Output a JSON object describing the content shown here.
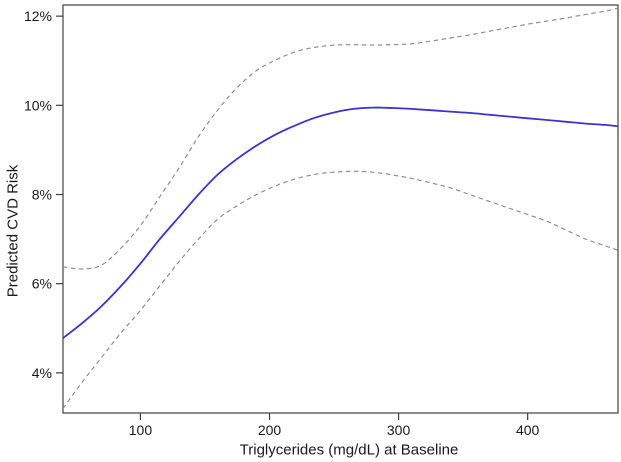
{
  "figure": {
    "background": "#ffffff",
    "frame_color": "#3f3f3f",
    "tick_color": "#3f3f3f",
    "text_color": "#1a1a1a",
    "tick_font_size": 14
  },
  "chart_data": {
    "type": "line",
    "title": "",
    "xlabel": "Triglycerides (mg/dL) at Baseline",
    "ylabel": "Predicted CVD Risk",
    "xlim": [
      40,
      470
    ],
    "ylim": [
      3.1,
      12.25
    ],
    "grid": false,
    "legend": "none",
    "x_ticks": [
      {
        "value": 100,
        "label": "100"
      },
      {
        "value": 200,
        "label": "200"
      },
      {
        "value": 300,
        "label": "300"
      },
      {
        "value": 400,
        "label": "400"
      }
    ],
    "y_ticks": [
      {
        "value": 4,
        "label": "4%"
      },
      {
        "value": 6,
        "label": "6%"
      },
      {
        "value": 8,
        "label": "8%"
      },
      {
        "value": 10,
        "label": "10%"
      },
      {
        "value": 12,
        "label": "12%"
      }
    ],
    "x": [
      40,
      55,
      70,
      85,
      100,
      115,
      130,
      145,
      160,
      175,
      190,
      205,
      220,
      235,
      250,
      265,
      280,
      295,
      310,
      325,
      340,
      355,
      370,
      385,
      400,
      415,
      430,
      445,
      460,
      470
    ],
    "series": [
      {
        "name": "predicted-cvd-risk",
        "color": "#3a32d4",
        "style": "solid",
        "width": 1.8,
        "values": [
          4.78,
          5.12,
          5.5,
          5.95,
          6.45,
          7.0,
          7.5,
          8.0,
          8.45,
          8.8,
          9.1,
          9.35,
          9.55,
          9.72,
          9.84,
          9.92,
          9.95,
          9.94,
          9.92,
          9.89,
          9.86,
          9.83,
          9.79,
          9.75,
          9.71,
          9.67,
          9.63,
          9.59,
          9.56,
          9.53
        ]
      },
      {
        "name": "upper-confidence-limit",
        "color": "#8a8a8a",
        "style": "dashed",
        "width": 1.15,
        "values": [
          6.38,
          6.33,
          6.42,
          6.8,
          7.3,
          7.95,
          8.6,
          9.3,
          9.9,
          10.4,
          10.78,
          11.02,
          11.2,
          11.3,
          11.35,
          11.36,
          11.35,
          11.36,
          11.38,
          11.44,
          11.51,
          11.58,
          11.66,
          11.74,
          11.82,
          11.89,
          11.96,
          12.04,
          12.11,
          12.18
        ]
      },
      {
        "name": "lower-confidence-limit",
        "color": "#8a8a8a",
        "style": "dashed",
        "width": 1.15,
        "values": [
          3.2,
          3.8,
          4.35,
          4.9,
          5.4,
          5.95,
          6.5,
          7.0,
          7.45,
          7.75,
          8.0,
          8.2,
          8.35,
          8.45,
          8.5,
          8.52,
          8.5,
          8.44,
          8.36,
          8.26,
          8.15,
          8.0,
          7.85,
          7.7,
          7.55,
          7.4,
          7.2,
          7.0,
          6.85,
          6.75
        ]
      }
    ]
  }
}
